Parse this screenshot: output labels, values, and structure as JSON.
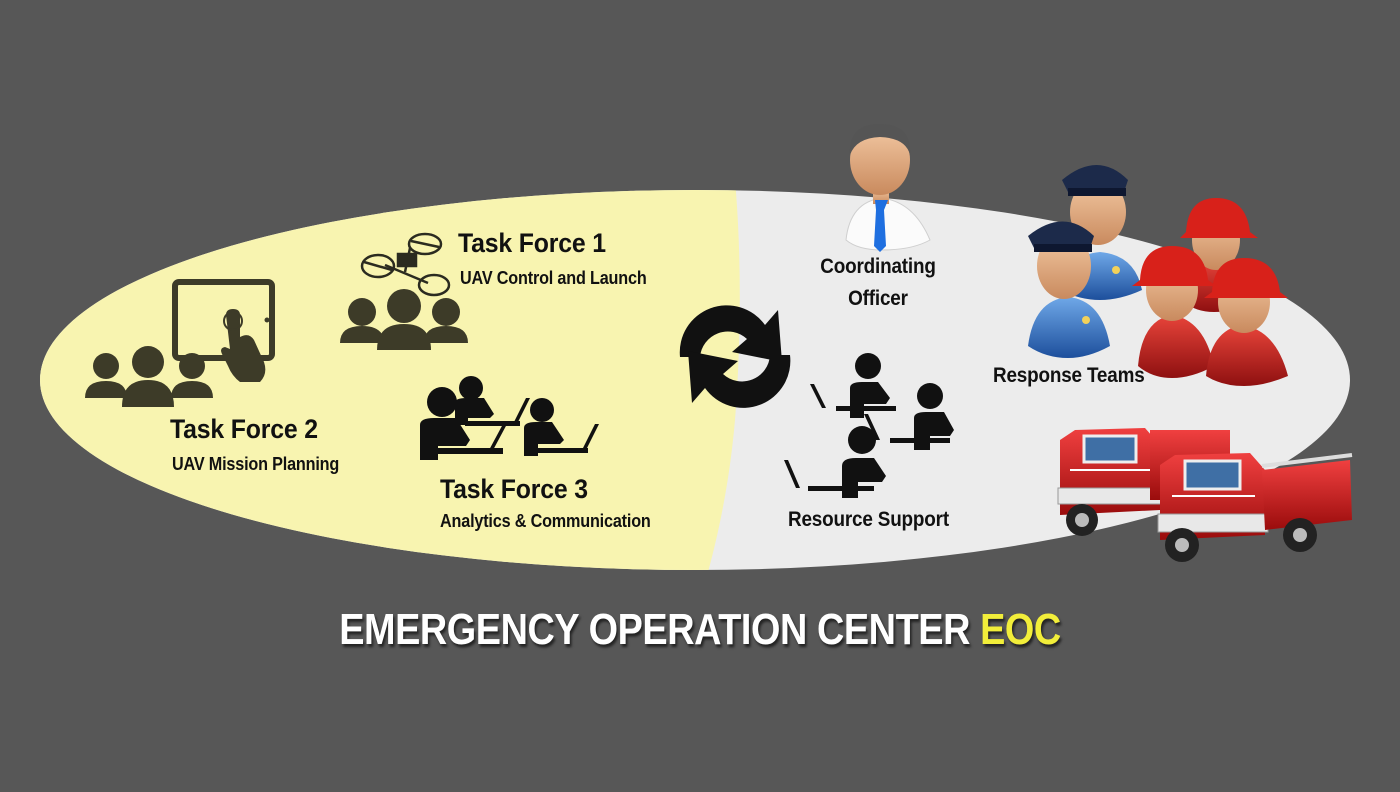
{
  "colors": {
    "background": "#575757",
    "ellipse_light": "#ececec",
    "ellipse_yellow": "#f8f4b0",
    "icon_olive": "#3d3b28",
    "icon_black": "#111111",
    "title_accent": "#f2ee3a"
  },
  "task_force_1": {
    "title": "Task Force 1",
    "subtitle": "UAV Control and Launch",
    "icons": [
      "drone-icon",
      "group-icon"
    ]
  },
  "task_force_2": {
    "title": "Task Force 2",
    "subtitle": "UAV Mission Planning",
    "icons": [
      "tablet-touch-icon",
      "group-icon"
    ]
  },
  "task_force_3": {
    "title": "Task Force 3",
    "subtitle": "Analytics & Communication",
    "icons": [
      "people-at-laptops-icon"
    ]
  },
  "coordinating_officer": {
    "line1": "Coordinating",
    "line2": "Officer",
    "icon": "officer-icon"
  },
  "response_teams": {
    "label": "Response Teams",
    "icons": [
      "police-officer-icon",
      "firefighter-icon"
    ]
  },
  "resource_support": {
    "label": "Resource Support",
    "icon": "people-at-laptops-icon"
  },
  "exchange_icon": "circular-arrows-icon",
  "vehicles_icon": "fire-truck-icon",
  "title": {
    "main": "EMERGENCY OPERATION CENTER",
    "accent": "EOC"
  }
}
